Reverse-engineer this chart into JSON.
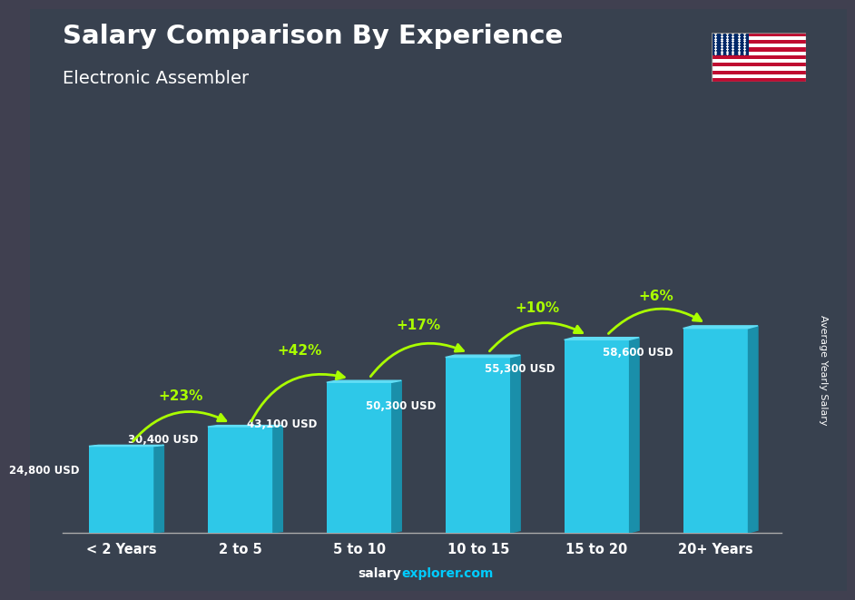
{
  "title": "Salary Comparison By Experience",
  "subtitle": "Electronic Assembler",
  "categories": [
    "< 2 Years",
    "2 to 5",
    "5 to 10",
    "10 to 15",
    "15 to 20",
    "20+ Years"
  ],
  "values": [
    24800,
    30400,
    43100,
    50300,
    55300,
    58600
  ],
  "value_labels": [
    "24,800 USD",
    "30,400 USD",
    "43,100 USD",
    "50,300 USD",
    "55,300 USD",
    "58,600 USD"
  ],
  "pct_labels": [
    "+23%",
    "+42%",
    "+17%",
    "+10%",
    "+6%"
  ],
  "bar_face_color": "#2ec8e8",
  "bar_side_color": "#1a8faa",
  "bar_top_color": "#60ddf5",
  "title_color": "#ffffff",
  "subtitle_color": "#ffffff",
  "value_color": "#ffffff",
  "pct_color": "#aaff00",
  "bg_color": "#3a3a4a",
  "footer_salary_color": "#ffffff",
  "footer_explorer_color": "#00ccff",
  "footer_text": "salaryexplorer.com",
  "ylabel_text": "Average Yearly Salary",
  "flag_box_color": "#cccccc"
}
